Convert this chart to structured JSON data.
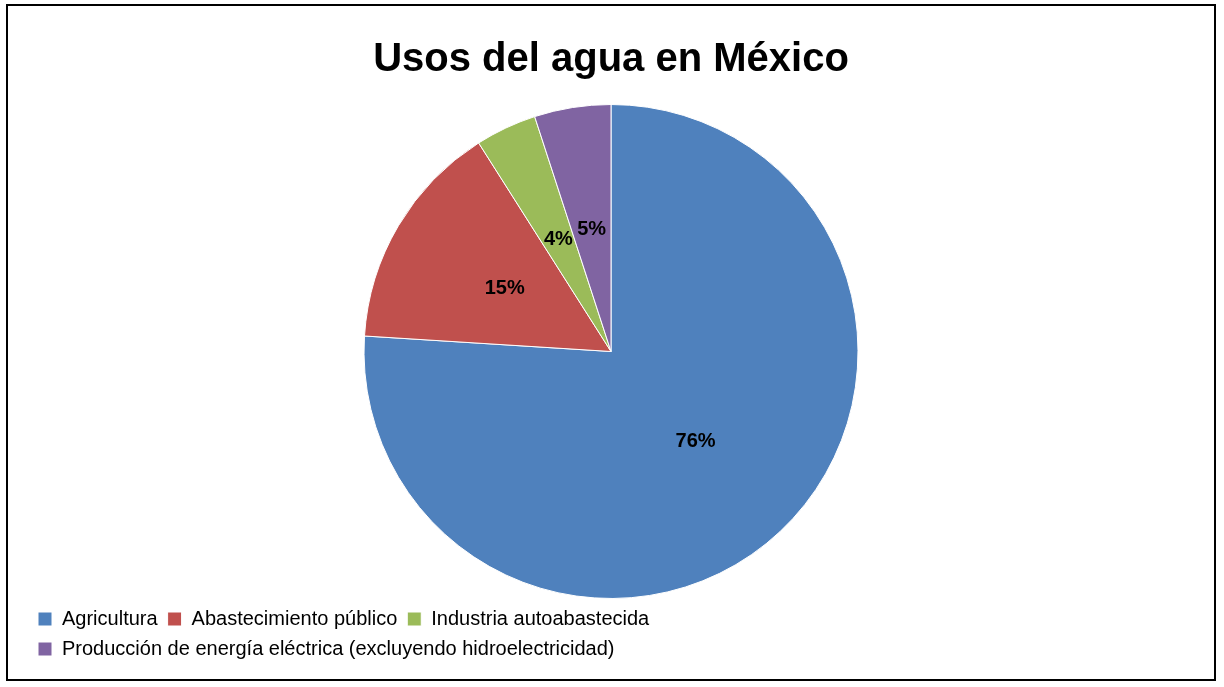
{
  "chart_data": {
    "type": "pie",
    "title": "Usos del agua en México",
    "categories": [
      "Agricultura",
      "Abastecimiento público",
      "Industria autoabastecida",
      "Producción de energía eléctrica (excluyendo hidroelectricidad)"
    ],
    "values": [
      76,
      15,
      4,
      5
    ],
    "value_labels": [
      "76%",
      "15%",
      "4%",
      "5%"
    ],
    "colors": [
      "#4f81bd",
      "#c0504d",
      "#9bbb59",
      "#8064a2"
    ],
    "legend": "bottom left"
  }
}
